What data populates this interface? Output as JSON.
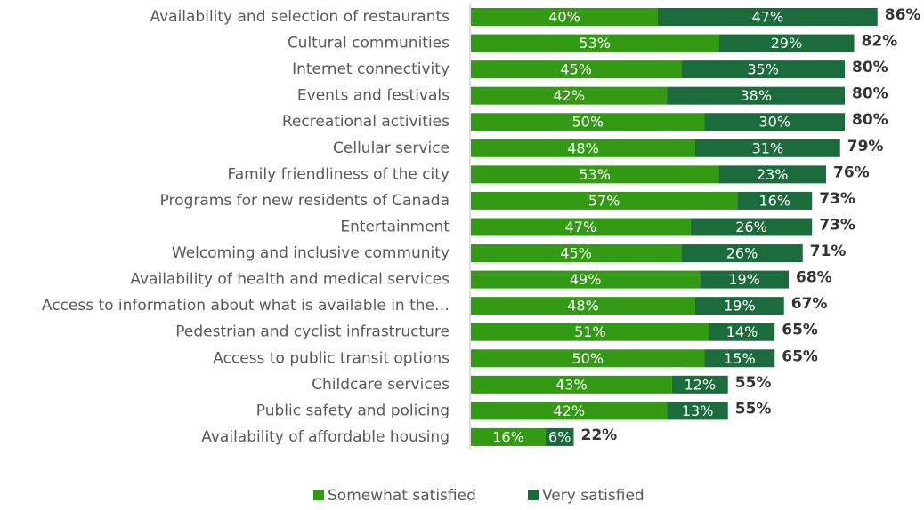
{
  "chart_data": {
    "type": "stacked-barh",
    "categories": [
      "Availability and selection of restaurants",
      "Cultural communities",
      "Internet connectivity",
      "Events and festivals",
      "Recreational activities",
      "Cellular service",
      "Family friendliness of the city",
      "Programs for new residents of Canada",
      "Entertainment",
      "Welcoming and inclusive community",
      "Availability of health and medical services",
      "Access to information about what is available in the…",
      "Pedestrian and cyclist infrastructure",
      "Access to public transit options",
      "Childcare services",
      "Public safety and policing",
      "Availability of affordable housing"
    ],
    "series": [
      {
        "name": "Somewhat satisfied",
        "color": "#339a14",
        "values": [
          40,
          53,
          45,
          42,
          50,
          48,
          53,
          57,
          47,
          45,
          49,
          48,
          51,
          50,
          43,
          42,
          16
        ],
        "value_labels": [
          "40%",
          "53%",
          "45%",
          "42%",
          "50%",
          "48%",
          "53%",
          "57%",
          "47%",
          "45%",
          "49%",
          "48%",
          "51%",
          "50%",
          "43%",
          "42%",
          "16%"
        ]
      },
      {
        "name": "Very satisfied",
        "color": "#1b6b3c",
        "values": [
          47,
          29,
          35,
          38,
          30,
          31,
          23,
          16,
          26,
          26,
          19,
          19,
          14,
          15,
          12,
          13,
          6
        ],
        "value_labels": [
          "47%",
          "29%",
          "35%",
          "38%",
          "30%",
          "31%",
          "23%",
          "16%",
          "26%",
          "26%",
          "19%",
          "19%",
          "14%",
          "15%",
          "12%",
          "13%",
          "6%"
        ]
      }
    ],
    "totals": {
      "values": [
        86,
        82,
        80,
        80,
        80,
        79,
        76,
        73,
        73,
        71,
        68,
        67,
        65,
        65,
        55,
        55,
        22
      ],
      "value_labels": [
        "86%",
        "82%",
        "80%",
        "80%",
        "80%",
        "79%",
        "76%",
        "73%",
        "73%",
        "71%",
        "68%",
        "67%",
        "65%",
        "65%",
        "55%",
        "55%",
        "22%"
      ]
    },
    "xlim": [
      0,
      100
    ]
  }
}
